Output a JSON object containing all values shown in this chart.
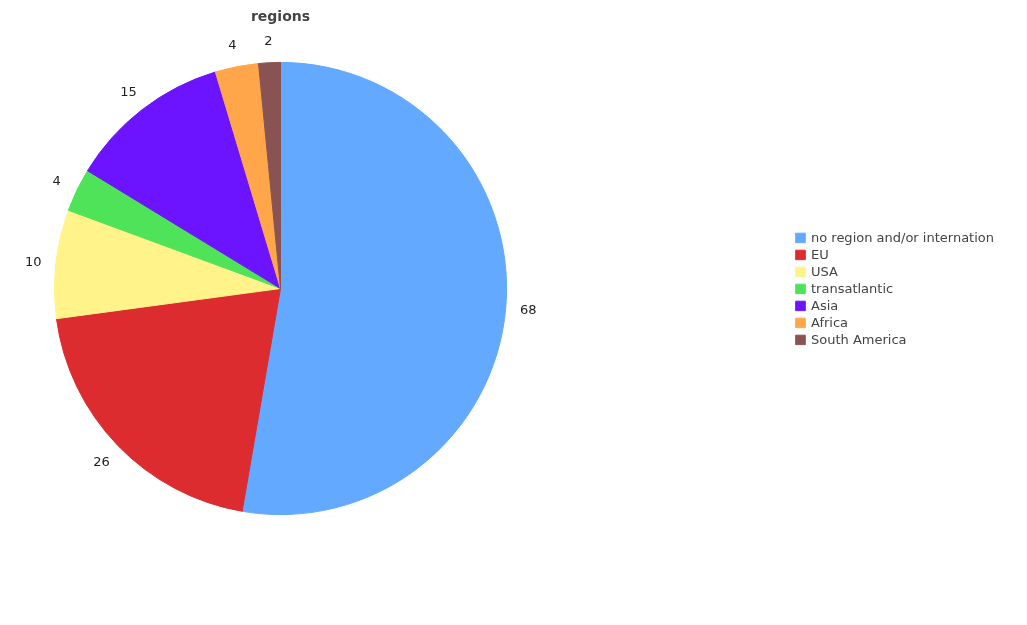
{
  "chart_data": {
    "type": "pie",
    "title": "regions",
    "categories": [
      "no region and/or internation",
      "EU",
      "USA",
      "transatlantic",
      "Asia",
      "Africa",
      "South America"
    ],
    "values": [
      68,
      26,
      10,
      4,
      15,
      4,
      2
    ],
    "colors": [
      "#63a9ff",
      "#dc2c30",
      "#fff38a",
      "#4fe35a",
      "#6c14ff",
      "#ffa64a",
      "#8a5353"
    ],
    "data_labels": true,
    "legend": "right"
  }
}
